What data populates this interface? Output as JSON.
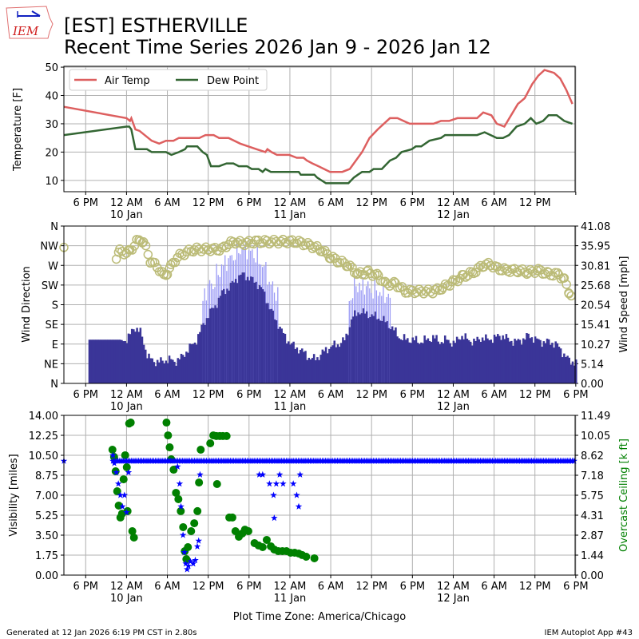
{
  "header": {
    "logo_text": "IEM",
    "title_line1": "[EST] ESTHERVILLE",
    "title_line2": "Recent Time Series 2026 Jan 9 - 2026 Jan 12"
  },
  "footer": {
    "generated": "Generated at 12 Jan 2026 6:19 PM CST in 2.80s",
    "app": "IEM Autoplot App #43"
  },
  "colors": {
    "air_temp": "#dd5f5f",
    "dew_point": "#336633",
    "wind_dir": "#3a3598",
    "wind_dir_light": "#9a9af5",
    "wind_speed": "#bbbb77",
    "visibility": "#0000ff",
    "ceiling": "#008000",
    "grid": "#b0b0b0"
  },
  "chart_data": [
    {
      "type": "line",
      "ylabel": "Temperature [F]",
      "ylim": [
        6,
        50.3
      ],
      "yticks": [
        "10",
        "20",
        "30",
        "40",
        "50"
      ],
      "ytick_values": [
        10,
        20,
        30,
        40,
        50
      ],
      "x_units": "hours since 12 AM 10 Jan (America/Chicago)",
      "xlim": [
        -9.2,
        65.9
      ],
      "grid": true,
      "legend_position": "top-left",
      "series": [
        {
          "name": "Air Temp",
          "points": [
            [
              -9.2,
              36
            ],
            [
              0,
              32
            ],
            [
              0.5,
              31
            ],
            [
              0.7,
              32
            ],
            [
              1.3,
              28
            ],
            [
              1.9,
              27.5
            ],
            [
              3.7,
              24
            ],
            [
              4.8,
              23
            ],
            [
              5.8,
              24
            ],
            [
              6.9,
              24
            ],
            [
              7.7,
              25
            ],
            [
              10.7,
              25
            ],
            [
              11.6,
              26
            ],
            [
              12.8,
              26
            ],
            [
              13.6,
              25
            ],
            [
              15,
              25
            ],
            [
              16.7,
              23
            ],
            [
              17.9,
              22
            ],
            [
              19.1,
              21
            ],
            [
              20.4,
              20
            ],
            [
              20.7,
              21
            ],
            [
              21.3,
              20
            ],
            [
              22.1,
              19
            ],
            [
              23.9,
              19
            ],
            [
              25,
              18
            ],
            [
              26,
              18
            ],
            [
              26.5,
              17
            ],
            [
              27.3,
              16
            ],
            [
              28.2,
              15
            ],
            [
              29.9,
              13
            ],
            [
              31.7,
              13
            ],
            [
              32.8,
              14
            ],
            [
              34.6,
              20
            ],
            [
              35.7,
              25
            ],
            [
              36.9,
              28
            ],
            [
              38.7,
              32
            ],
            [
              39.8,
              32
            ],
            [
              41.6,
              30
            ],
            [
              45.1,
              30
            ],
            [
              46.2,
              31
            ],
            [
              47.4,
              31
            ],
            [
              48.6,
              32
            ],
            [
              51.5,
              32
            ],
            [
              52.4,
              34
            ],
            [
              53.6,
              33
            ],
            [
              54.4,
              30
            ],
            [
              55.5,
              29
            ],
            [
              57.5,
              37
            ],
            [
              58.5,
              39
            ],
            [
              59.6,
              44
            ],
            [
              60.5,
              47
            ],
            [
              61.4,
              49
            ],
            [
              62.8,
              48
            ],
            [
              63.7,
              46
            ],
            [
              64.6,
              42
            ],
            [
              65.5,
              37
            ]
          ]
        },
        {
          "name": "Dew Point",
          "points": [
            [
              -9.2,
              26
            ],
            [
              0,
              29
            ],
            [
              0.4,
              29
            ],
            [
              0.7,
              28
            ],
            [
              1.3,
              21
            ],
            [
              3,
              21
            ],
            [
              3.7,
              20
            ],
            [
              5.8,
              20
            ],
            [
              6.6,
              19
            ],
            [
              7.7,
              20
            ],
            [
              8.6,
              21
            ],
            [
              8.9,
              22
            ],
            [
              10.4,
              22
            ],
            [
              11.2,
              20
            ],
            [
              11.8,
              19
            ],
            [
              12.4,
              15
            ],
            [
              13.6,
              15
            ],
            [
              14.7,
              16
            ],
            [
              15.7,
              16
            ],
            [
              16.5,
              15
            ],
            [
              17.7,
              15
            ],
            [
              18.4,
              14
            ],
            [
              19.4,
              14
            ],
            [
              20,
              13
            ],
            [
              20.4,
              14
            ],
            [
              21.2,
              13
            ],
            [
              25.3,
              13
            ],
            [
              25.6,
              12
            ],
            [
              27.6,
              12
            ],
            [
              28,
              11
            ],
            [
              29.3,
              9
            ],
            [
              32.6,
              9
            ],
            [
              33.4,
              11
            ],
            [
              34,
              12
            ],
            [
              34.6,
              13
            ],
            [
              35.7,
              13
            ],
            [
              36.3,
              14
            ],
            [
              37.5,
              14
            ],
            [
              38.7,
              17
            ],
            [
              39.6,
              18
            ],
            [
              40.4,
              20
            ],
            [
              41.9,
              21
            ],
            [
              42.5,
              22
            ],
            [
              43.3,
              22
            ],
            [
              44.5,
              24
            ],
            [
              46.2,
              25
            ],
            [
              46.8,
              26
            ],
            [
              51.5,
              26
            ],
            [
              52.6,
              27
            ],
            [
              54.4,
              25
            ],
            [
              55.3,
              25
            ],
            [
              56.2,
              26
            ],
            [
              57.3,
              29
            ],
            [
              58.5,
              30
            ],
            [
              59.4,
              32
            ],
            [
              60.2,
              30
            ],
            [
              61.2,
              31
            ],
            [
              62,
              33
            ],
            [
              63.2,
              33
            ],
            [
              64.3,
              31
            ],
            [
              65.5,
              30
            ]
          ]
        }
      ]
    },
    {
      "type": "bar",
      "ylabel": "Wind Direction",
      "ylabel_right": "Wind Speed [mph]",
      "ylim": [
        0,
        360
      ],
      "ylim_right": [
        0,
        41.08
      ],
      "yticks": [
        "N",
        "NE",
        "E",
        "SE",
        "S",
        "SW",
        "W",
        "NW",
        "N"
      ],
      "yticks_right": [
        "0.00",
        "5.14",
        "10.27",
        "15.41",
        "20.54",
        "25.68",
        "30.81",
        "35.95",
        "41.08"
      ],
      "direction_start_hour": -6,
      "direction_hourly_deg": [
        100,
        100,
        100,
        100,
        100,
        100,
        100,
        130,
        115,
        60,
        50,
        50,
        55,
        50,
        60,
        80,
        95,
        130,
        160,
        180,
        210,
        220,
        240,
        250,
        240,
        230,
        210,
        170,
        140,
        110,
        90,
        80,
        70,
        55,
        60,
        75,
        85,
        90,
        100,
        150,
        165,
        160,
        155,
        150,
        140,
        125,
        105,
        100,
        100,
        95,
        100,
        105,
        95,
        100,
        90,
        110,
        100,
        95,
        105,
        100,
        105,
        110,
        100,
        95,
        100,
        110,
        100,
        95,
        95,
        90,
        70,
        50
      ],
      "wind_speed_mph": [
        [
          -9.2,
          35.5
        ],
        [
          -1.5,
          33
        ],
        [
          -1,
          34.5
        ],
        [
          0,
          34
        ],
        [
          0.5,
          34.5
        ],
        [
          1.5,
          37
        ],
        [
          2,
          37.5
        ],
        [
          2.5,
          37
        ],
        [
          3.5,
          32
        ],
        [
          4.5,
          30.5
        ],
        [
          5.5,
          28
        ],
        [
          6,
          29
        ],
        [
          6.5,
          30.5
        ],
        [
          7.5,
          33
        ],
        [
          8.5,
          34
        ],
        [
          10,
          35
        ],
        [
          12,
          35
        ],
        [
          14,
          35
        ],
        [
          15,
          36.5
        ],
        [
          16,
          37
        ],
        [
          17,
          36.5
        ],
        [
          19,
          37
        ],
        [
          21,
          37
        ],
        [
          23,
          37
        ],
        [
          25,
          37
        ],
        [
          27,
          36
        ],
        [
          28.5,
          35
        ],
        [
          30,
          33
        ],
        [
          31,
          32
        ],
        [
          32.5,
          31
        ],
        [
          34,
          28.5
        ],
        [
          35.5,
          29
        ],
        [
          37,
          28
        ],
        [
          38,
          26
        ],
        [
          39.5,
          26
        ],
        [
          41,
          24
        ],
        [
          43,
          24
        ],
        [
          45,
          24
        ],
        [
          46.5,
          25
        ],
        [
          48,
          26.5
        ],
        [
          49.5,
          28
        ],
        [
          51,
          29
        ],
        [
          52.5,
          31
        ],
        [
          53.5,
          31
        ],
        [
          54.5,
          30
        ],
        [
          56,
          29.5
        ],
        [
          57.5,
          29.5
        ],
        [
          59,
          29
        ],
        [
          60.5,
          29.5
        ],
        [
          62,
          28.5
        ],
        [
          63.5,
          28.5
        ],
        [
          64.3,
          27
        ],
        [
          65,
          24
        ],
        [
          65.6,
          22
        ]
      ]
    },
    {
      "type": "scatter",
      "ylabel": "Visibility [miles]",
      "ylabel_right": "Overcast Ceiling [k ft]",
      "xlabel": "Plot Time Zone: America/Chicago",
      "ylim": [
        0,
        14
      ],
      "ylim_right": [
        0,
        11.49
      ],
      "yticks": [
        "0.00",
        "1.75",
        "3.50",
        "5.25",
        "7.00",
        "8.75",
        "10.50",
        "12.25",
        "14.00"
      ],
      "yticks_right": [
        "0.00",
        "1.44",
        "2.87",
        "4.31",
        "5.75",
        "7.18",
        "8.62",
        "10.05",
        "11.49"
      ],
      "visibility_baseline": {
        "start_hour": -2,
        "end_hour": 65.9,
        "value": 10
      },
      "visibility_points": [
        [
          -9.2,
          10
        ],
        [
          -2,
          10.5
        ],
        [
          -1.8,
          9.8
        ],
        [
          -1.5,
          9
        ],
        [
          -1.2,
          8
        ],
        [
          -0.9,
          7
        ],
        [
          -0.6,
          6
        ],
        [
          -0.3,
          7
        ],
        [
          0,
          5.5
        ],
        [
          0.3,
          9
        ],
        [
          7.5,
          9.5
        ],
        [
          7.8,
          8
        ],
        [
          8,
          6
        ],
        [
          8.3,
          3.5
        ],
        [
          8.5,
          2
        ],
        [
          8.7,
          1
        ],
        [
          8.9,
          0.5
        ],
        [
          9.1,
          0.8
        ],
        [
          9.4,
          1.2
        ],
        [
          9.8,
          1
        ],
        [
          10.1,
          1.3
        ],
        [
          10.4,
          2.5
        ],
        [
          10.6,
          3
        ],
        [
          10.8,
          8.8
        ],
        [
          19.5,
          8.8
        ],
        [
          20,
          8.8
        ],
        [
          21,
          8
        ],
        [
          21.6,
          7
        ],
        [
          21.7,
          5
        ],
        [
          22,
          8
        ],
        [
          22.5,
          8.8
        ],
        [
          23,
          8
        ],
        [
          24.5,
          8
        ],
        [
          25,
          7
        ],
        [
          25.3,
          6
        ],
        [
          25.5,
          8.8
        ]
      ],
      "ceiling_kft": [
        [
          -2.07,
          9.02
        ],
        [
          -1.83,
          8.5
        ],
        [
          -1.6,
          7.47
        ],
        [
          -1.37,
          6.03
        ],
        [
          -1.15,
          5.0
        ],
        [
          -0.9,
          4.14
        ],
        [
          -0.66,
          4.42
        ],
        [
          -0.43,
          6.89
        ],
        [
          -0.2,
          8.62
        ],
        [
          0.04,
          7.76
        ],
        [
          0.15,
          4.6
        ],
        [
          0.39,
          10.9
        ],
        [
          0.62,
          10.97
        ],
        [
          0.85,
          3.16
        ],
        [
          1.09,
          2.7
        ],
        [
          5.87,
          10.97
        ],
        [
          6.1,
          10.05
        ],
        [
          6.34,
          9.19
        ],
        [
          6.57,
          8.33
        ],
        [
          6.92,
          7.58
        ],
        [
          7.27,
          5.92
        ],
        [
          7.62,
          5.46
        ],
        [
          7.97,
          4.6
        ],
        [
          8.32,
          3.45
        ],
        [
          8.55,
          1.72
        ],
        [
          8.79,
          1.15
        ],
        [
          9.02,
          2.01
        ],
        [
          9.49,
          3.16
        ],
        [
          9.95,
          3.73
        ],
        [
          10.42,
          4.6
        ],
        [
          10.65,
          6.66
        ],
        [
          10.9,
          9.02
        ],
        [
          12.3,
          9.48
        ],
        [
          12.75,
          10.05
        ],
        [
          13.2,
          10.0
        ],
        [
          13.7,
          10.0
        ],
        [
          14.15,
          10.0
        ],
        [
          14.7,
          10.0
        ],
        [
          13.3,
          6.55
        ],
        [
          15.1,
          4.14
        ],
        [
          15.55,
          4.14
        ],
        [
          16.0,
          3.16
        ],
        [
          16.5,
          2.76
        ],
        [
          17.0,
          2.99
        ],
        [
          17.4,
          3.27
        ],
        [
          17.9,
          3.16
        ],
        [
          18.8,
          2.3
        ],
        [
          19.4,
          2.13
        ],
        [
          20.0,
          2.01
        ],
        [
          20.6,
          2.53
        ],
        [
          21.2,
          2.07
        ],
        [
          21.7,
          1.84
        ],
        [
          22.3,
          1.72
        ],
        [
          22.9,
          1.72
        ],
        [
          23.5,
          1.72
        ],
        [
          24.1,
          1.61
        ],
        [
          24.7,
          1.61
        ],
        [
          25.3,
          1.55
        ],
        [
          25.8,
          1.44
        ],
        [
          26.4,
          1.32
        ],
        [
          27.6,
          1.21
        ]
      ]
    }
  ],
  "x_axis": {
    "ticks": [
      {
        "hour": -6,
        "label": "6 PM",
        "date": ""
      },
      {
        "hour": 0,
        "label": "12 AM",
        "date": "10 Jan"
      },
      {
        "hour": 6,
        "label": "6 AM",
        "date": ""
      },
      {
        "hour": 12,
        "label": "12 PM",
        "date": ""
      },
      {
        "hour": 18,
        "label": "6 PM",
        "date": ""
      },
      {
        "hour": 24,
        "label": "12 AM",
        "date": "11 Jan"
      },
      {
        "hour": 30,
        "label": "6 AM",
        "date": ""
      },
      {
        "hour": 36,
        "label": "12 PM",
        "date": ""
      },
      {
        "hour": 42,
        "label": "6 PM",
        "date": ""
      },
      {
        "hour": 48,
        "label": "12 AM",
        "date": "12 Jan"
      },
      {
        "hour": 54,
        "label": "6 AM",
        "date": ""
      },
      {
        "hour": 60,
        "label": "12 PM",
        "date": ""
      },
      {
        "hour": 66,
        "label": "6 PM",
        "date": ""
      }
    ]
  }
}
